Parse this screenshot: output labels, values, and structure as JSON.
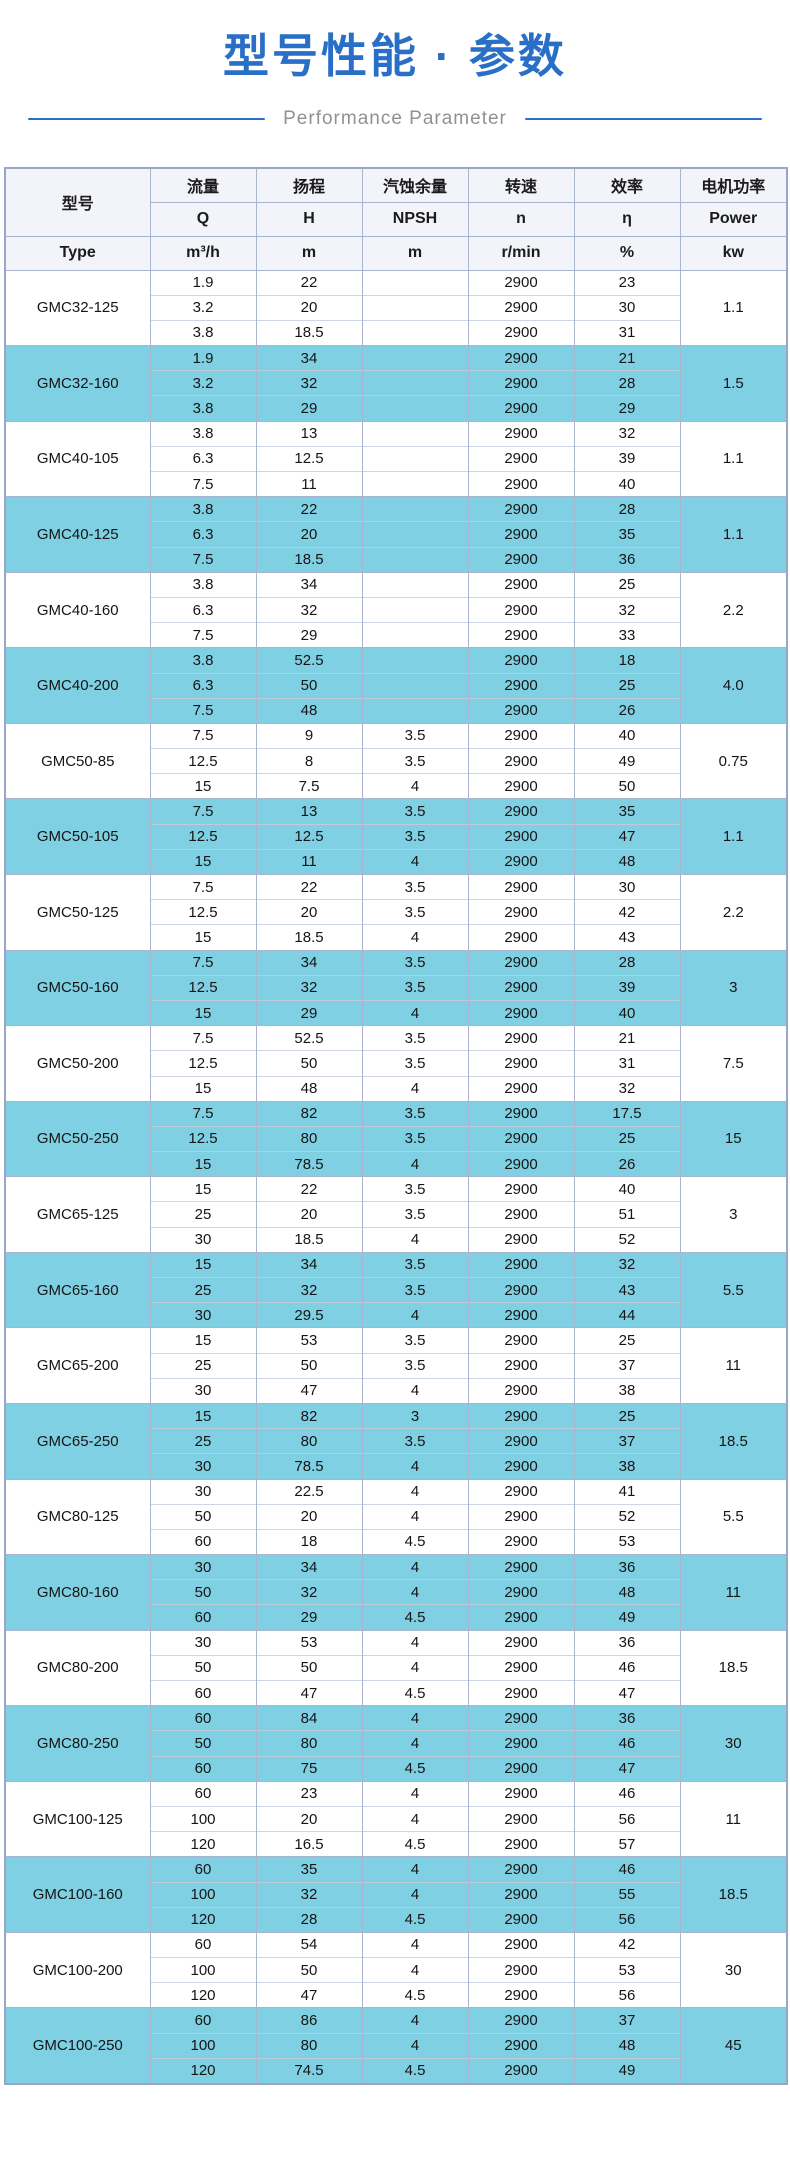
{
  "page": {
    "title": "型号性能 · 参数",
    "subtitle": "Performance Parameter",
    "accent_color": "#2A6FC7",
    "highlight_color": "#7FD0E3"
  },
  "table": {
    "header": {
      "model_label_cn": "型号",
      "model_label_en": "Type",
      "columns_cn": [
        "流量",
        "扬程",
        "汽蚀余量",
        "转速",
        "效率",
        "电机功率"
      ],
      "columns_symbol": [
        "Q",
        "H",
        "NPSH",
        "n",
        "η",
        "Power"
      ],
      "columns_unit": [
        "m³/h",
        "m",
        "m",
        "r/min",
        "%",
        "kw"
      ]
    },
    "groups": [
      {
        "model": "GMC32-125",
        "power": "1.1",
        "rows": [
          [
            "1.9",
            "22",
            "",
            "2900",
            "23"
          ],
          [
            "3.2",
            "20",
            "",
            "2900",
            "30"
          ],
          [
            "3.8",
            "18.5",
            "",
            "2900",
            "31"
          ]
        ]
      },
      {
        "model": "GMC32-160",
        "power": "1.5",
        "rows": [
          [
            "1.9",
            "34",
            "",
            "2900",
            "21"
          ],
          [
            "3.2",
            "32",
            "",
            "2900",
            "28"
          ],
          [
            "3.8",
            "29",
            "",
            "2900",
            "29"
          ]
        ]
      },
      {
        "model": "GMC40-105",
        "power": "1.1",
        "rows": [
          [
            "3.8",
            "13",
            "",
            "2900",
            "32"
          ],
          [
            "6.3",
            "12.5",
            "",
            "2900",
            "39"
          ],
          [
            "7.5",
            "11",
            "",
            "2900",
            "40"
          ]
        ]
      },
      {
        "model": "GMC40-125",
        "power": "1.1",
        "rows": [
          [
            "3.8",
            "22",
            "",
            "2900",
            "28"
          ],
          [
            "6.3",
            "20",
            "",
            "2900",
            "35"
          ],
          [
            "7.5",
            "18.5",
            "",
            "2900",
            "36"
          ]
        ]
      },
      {
        "model": "GMC40-160",
        "power": "2.2",
        "rows": [
          [
            "3.8",
            "34",
            "",
            "2900",
            "25"
          ],
          [
            "6.3",
            "32",
            "",
            "2900",
            "32"
          ],
          [
            "7.5",
            "29",
            "",
            "2900",
            "33"
          ]
        ]
      },
      {
        "model": "GMC40-200",
        "power": "4.0",
        "rows": [
          [
            "3.8",
            "52.5",
            "",
            "2900",
            "18"
          ],
          [
            "6.3",
            "50",
            "",
            "2900",
            "25"
          ],
          [
            "7.5",
            "48",
            "",
            "2900",
            "26"
          ]
        ]
      },
      {
        "model": "GMC50-85",
        "power": "0.75",
        "rows": [
          [
            "7.5",
            "9",
            "3.5",
            "2900",
            "40"
          ],
          [
            "12.5",
            "8",
            "3.5",
            "2900",
            "49"
          ],
          [
            "15",
            "7.5",
            "4",
            "2900",
            "50"
          ]
        ]
      },
      {
        "model": "GMC50-105",
        "power": "1.1",
        "rows": [
          [
            "7.5",
            "13",
            "3.5",
            "2900",
            "35"
          ],
          [
            "12.5",
            "12.5",
            "3.5",
            "2900",
            "47"
          ],
          [
            "15",
            "11",
            "4",
            "2900",
            "48"
          ]
        ]
      },
      {
        "model": "GMC50-125",
        "power": "2.2",
        "rows": [
          [
            "7.5",
            "22",
            "3.5",
            "2900",
            "30"
          ],
          [
            "12.5",
            "20",
            "3.5",
            "2900",
            "42"
          ],
          [
            "15",
            "18.5",
            "4",
            "2900",
            "43"
          ]
        ]
      },
      {
        "model": "GMC50-160",
        "power": "3",
        "rows": [
          [
            "7.5",
            "34",
            "3.5",
            "2900",
            "28"
          ],
          [
            "12.5",
            "32",
            "3.5",
            "2900",
            "39"
          ],
          [
            "15",
            "29",
            "4",
            "2900",
            "40"
          ]
        ]
      },
      {
        "model": "GMC50-200",
        "power": "7.5",
        "rows": [
          [
            "7.5",
            "52.5",
            "3.5",
            "2900",
            "21"
          ],
          [
            "12.5",
            "50",
            "3.5",
            "2900",
            "31"
          ],
          [
            "15",
            "48",
            "4",
            "2900",
            "32"
          ]
        ]
      },
      {
        "model": "GMC50-250",
        "power": "15",
        "rows": [
          [
            "7.5",
            "82",
            "3.5",
            "2900",
            "17.5"
          ],
          [
            "12.5",
            "80",
            "3.5",
            "2900",
            "25"
          ],
          [
            "15",
            "78.5",
            "4",
            "2900",
            "26"
          ]
        ]
      },
      {
        "model": "GMC65-125",
        "power": "3",
        "rows": [
          [
            "15",
            "22",
            "3.5",
            "2900",
            "40"
          ],
          [
            "25",
            "20",
            "3.5",
            "2900",
            "51"
          ],
          [
            "30",
            "18.5",
            "4",
            "2900",
            "52"
          ]
        ]
      },
      {
        "model": "GMC65-160",
        "power": "5.5",
        "rows": [
          [
            "15",
            "34",
            "3.5",
            "2900",
            "32"
          ],
          [
            "25",
            "32",
            "3.5",
            "2900",
            "43"
          ],
          [
            "30",
            "29.5",
            "4",
            "2900",
            "44"
          ]
        ]
      },
      {
        "model": "GMC65-200",
        "power": "11",
        "rows": [
          [
            "15",
            "53",
            "3.5",
            "2900",
            "25"
          ],
          [
            "25",
            "50",
            "3.5",
            "2900",
            "37"
          ],
          [
            "30",
            "47",
            "4",
            "2900",
            "38"
          ]
        ]
      },
      {
        "model": "GMC65-250",
        "power": "18.5",
        "rows": [
          [
            "15",
            "82",
            "3",
            "2900",
            "25"
          ],
          [
            "25",
            "80",
            "3.5",
            "2900",
            "37"
          ],
          [
            "30",
            "78.5",
            "4",
            "2900",
            "38"
          ]
        ]
      },
      {
        "model": "GMC80-125",
        "power": "5.5",
        "rows": [
          [
            "30",
            "22.5",
            "4",
            "2900",
            "41"
          ],
          [
            "50",
            "20",
            "4",
            "2900",
            "52"
          ],
          [
            "60",
            "18",
            "4.5",
            "2900",
            "53"
          ]
        ]
      },
      {
        "model": "GMC80-160",
        "power": "11",
        "rows": [
          [
            "30",
            "34",
            "4",
            "2900",
            "36"
          ],
          [
            "50",
            "32",
            "4",
            "2900",
            "48"
          ],
          [
            "60",
            "29",
            "4.5",
            "2900",
            "49"
          ]
        ]
      },
      {
        "model": "GMC80-200",
        "power": "18.5",
        "rows": [
          [
            "30",
            "53",
            "4",
            "2900",
            "36"
          ],
          [
            "50",
            "50",
            "4",
            "2900",
            "46"
          ],
          [
            "60",
            "47",
            "4.5",
            "2900",
            "47"
          ]
        ]
      },
      {
        "model": "GMC80-250",
        "power": "30",
        "rows": [
          [
            "60",
            "84",
            "4",
            "2900",
            "36"
          ],
          [
            "50",
            "80",
            "4",
            "2900",
            "46"
          ],
          [
            "60",
            "75",
            "4.5",
            "2900",
            "47"
          ]
        ]
      },
      {
        "model": "GMC100-125",
        "power": "11",
        "rows": [
          [
            "60",
            "23",
            "4",
            "2900",
            "46"
          ],
          [
            "100",
            "20",
            "4",
            "2900",
            "56"
          ],
          [
            "120",
            "16.5",
            "4.5",
            "2900",
            "57"
          ]
        ]
      },
      {
        "model": "GMC100-160",
        "power": "18.5",
        "rows": [
          [
            "60",
            "35",
            "4",
            "2900",
            "46"
          ],
          [
            "100",
            "32",
            "4",
            "2900",
            "55"
          ],
          [
            "120",
            "28",
            "4.5",
            "2900",
            "56"
          ]
        ]
      },
      {
        "model": "GMC100-200",
        "power": "30",
        "rows": [
          [
            "60",
            "54",
            "4",
            "2900",
            "42"
          ],
          [
            "100",
            "50",
            "4",
            "2900",
            "53"
          ],
          [
            "120",
            "47",
            "4.5",
            "2900",
            "56"
          ]
        ]
      },
      {
        "model": "GMC100-250",
        "power": "45",
        "rows": [
          [
            "60",
            "86",
            "4",
            "2900",
            "37"
          ],
          [
            "100",
            "80",
            "4",
            "2900",
            "48"
          ],
          [
            "120",
            "74.5",
            "4.5",
            "2900",
            "49"
          ]
        ]
      }
    ]
  }
}
